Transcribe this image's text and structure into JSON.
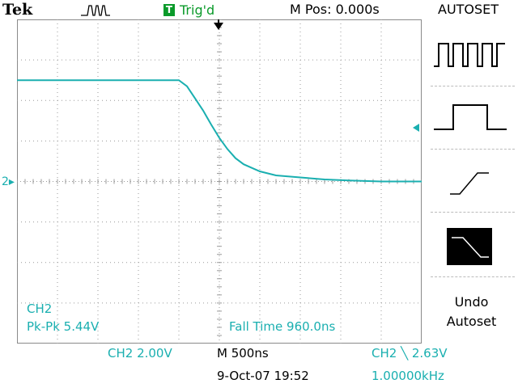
{
  "header": {
    "brand": "Tek",
    "acquisition_icon": "pulse-waveform-icon",
    "trigger_status": "Trig'd",
    "trigger_status_badge": "T",
    "horizontal_position": "M Pos: 0.000s"
  },
  "menu": {
    "title": "AUTOSET",
    "options": [
      {
        "icon": "multi-cycle-square-wave-icon"
      },
      {
        "icon": "single-cycle-pulse-icon"
      },
      {
        "icon": "rising-edge-icon"
      },
      {
        "icon": "falling-edge-icon",
        "selected": true
      }
    ],
    "undo_label_line1": "Undo",
    "undo_label_line2": "Autoset"
  },
  "readouts": {
    "channel": "CH2",
    "pk_pk": "Pk-Pk 5.44V",
    "fall_time": "Fall Time 960.0ns",
    "channel_scale": "CH2  2.00V",
    "timebase": "M 500ns",
    "trigger_level": "CH2 ╲ 2.63V",
    "date_time": "9-Oct-07 19:52",
    "frequency": "1.00000kHz",
    "ground_marker": "2▸"
  },
  "colors": {
    "trace": "#1aafb0",
    "trigger_ok": "#0a9a2a",
    "grid": "#9a9a9a",
    "selected_menu_bg": "#000000"
  },
  "chart_data": {
    "type": "line",
    "title": "",
    "xlabel": "",
    "ylabel": "",
    "x_unit": "s",
    "y_unit": "V",
    "xlim": [
      -2.5e-06,
      2.5e-06
    ],
    "ylim": [
      -8,
      8
    ],
    "series": [
      {
        "x": [
          -2.5e-06,
          -5e-07,
          -4e-07,
          -3e-07,
          -2e-07,
          -1e-07,
          0.0,
          1e-07,
          2e-07,
          3e-07,
          5e-07,
          7e-07,
          1e-06,
          1.3e-06,
          1.6e-06,
          2e-06,
          2.5e-06
        ],
        "y": [
          5.0,
          5.0,
          4.7,
          4.1,
          3.5,
          2.8,
          2.15,
          1.6,
          1.15,
          0.85,
          0.5,
          0.3,
          0.2,
          0.1,
          0.05,
          0.0,
          0.0
        ]
      }
    ]
  }
}
